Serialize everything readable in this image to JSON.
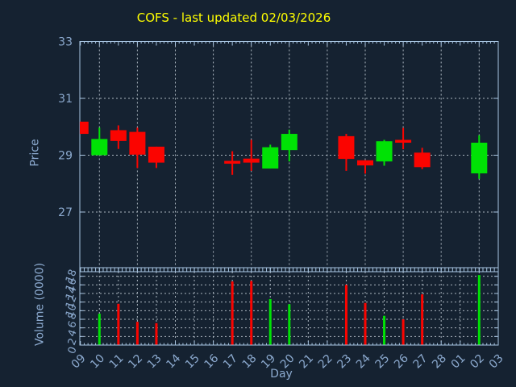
{
  "colors": {
    "background": "#152231",
    "frame": "#a9c6e3",
    "label": "#8caacf",
    "title": "#ffff00",
    "grid": "#aab5bf",
    "up": "#00e205",
    "down": "#fb0400"
  },
  "chart_data": {
    "type": "candlestick-with-volume",
    "title": "COFS - last updated 02/03/2026",
    "xlabel": "Day",
    "price_axis": {
      "label": "Price",
      "ticks": [
        33,
        31,
        29,
        27
      ],
      "range": [
        24.9,
        33.0
      ],
      "grid": true
    },
    "volume_axis": {
      "label": "Volume (0000)",
      "ticks": [
        18,
        16,
        14,
        12,
        10,
        8,
        6,
        4,
        2,
        0
      ],
      "range": [
        0,
        18
      ],
      "grid": true
    },
    "days": [
      "09",
      "10",
      "11",
      "12",
      "13",
      "14",
      "15",
      "16",
      "17",
      "18",
      "19",
      "20",
      "21",
      "22",
      "23",
      "24",
      "25",
      "26",
      "27",
      "28",
      "01",
      "02",
      "03"
    ],
    "candles": [
      {
        "day": "09",
        "open": 30.18,
        "high": 30.18,
        "low": 29.75,
        "close": 29.75,
        "direction": "down"
      },
      {
        "day": "10",
        "open": 29.0,
        "high": 29.97,
        "low": 29.0,
        "close": 29.57,
        "direction": "up"
      },
      {
        "day": "11",
        "open": 29.88,
        "high": 30.05,
        "low": 29.22,
        "close": 29.5,
        "direction": "down"
      },
      {
        "day": "12",
        "open": 29.82,
        "high": 29.97,
        "low": 28.55,
        "close": 29.02,
        "direction": "down"
      },
      {
        "day": "13",
        "open": 29.3,
        "high": 29.3,
        "low": 28.55,
        "close": 28.74,
        "direction": "down"
      },
      {
        "day": "17",
        "open": 28.8,
        "high": 29.14,
        "low": 28.31,
        "close": 28.71,
        "direction": "down"
      },
      {
        "day": "18",
        "open": 28.88,
        "high": 29.54,
        "low": 28.45,
        "close": 28.74,
        "direction": "down"
      },
      {
        "day": "19",
        "open": 28.53,
        "high": 29.37,
        "low": 28.53,
        "close": 29.28,
        "direction": "up"
      },
      {
        "day": "20",
        "open": 29.18,
        "high": 29.9,
        "low": 28.78,
        "close": 29.75,
        "direction": "up"
      },
      {
        "day": "23",
        "open": 29.67,
        "high": 29.75,
        "low": 28.45,
        "close": 28.87,
        "direction": "down"
      },
      {
        "day": "24",
        "open": 28.82,
        "high": 28.82,
        "low": 28.35,
        "close": 28.64,
        "direction": "down"
      },
      {
        "day": "25",
        "open": 28.78,
        "high": 29.54,
        "low": 28.63,
        "close": 29.49,
        "direction": "up"
      },
      {
        "day": "26",
        "open": 29.54,
        "high": 29.96,
        "low": 29.21,
        "close": 29.46,
        "direction": "down"
      },
      {
        "day": "27",
        "open": 29.09,
        "high": 29.26,
        "low": 28.51,
        "close": 28.58,
        "direction": "down"
      },
      {
        "day": "02",
        "open": 28.36,
        "high": 29.7,
        "low": 28.17,
        "close": 29.44,
        "direction": "up"
      }
    ],
    "volumes": [
      {
        "day": "10",
        "value": 7.3,
        "direction": "up"
      },
      {
        "day": "11",
        "value": 9.6,
        "direction": "down"
      },
      {
        "day": "12",
        "value": 5.4,
        "direction": "down"
      },
      {
        "day": "13",
        "value": 5.1,
        "direction": "down"
      },
      {
        "day": "17",
        "value": 14.8,
        "direction": "down"
      },
      {
        "day": "18",
        "value": 14.9,
        "direction": "down"
      },
      {
        "day": "19",
        "value": 10.7,
        "direction": "up"
      },
      {
        "day": "20",
        "value": 9.5,
        "direction": "up"
      },
      {
        "day": "23",
        "value": 14.0,
        "direction": "down"
      },
      {
        "day": "24",
        "value": 9.8,
        "direction": "down"
      },
      {
        "day": "25",
        "value": 6.8,
        "direction": "up"
      },
      {
        "day": "26",
        "value": 6.0,
        "direction": "down"
      },
      {
        "day": "27",
        "value": 11.8,
        "direction": "down"
      },
      {
        "day": "02",
        "value": 16.3,
        "direction": "up"
      }
    ]
  }
}
